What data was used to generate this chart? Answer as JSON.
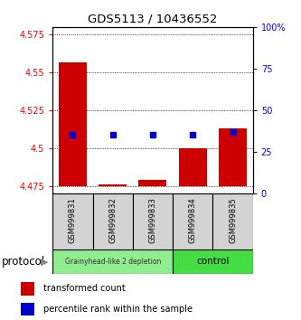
{
  "title": "GDS5113 / 10436552",
  "samples": [
    "GSM999831",
    "GSM999832",
    "GSM999833",
    "GSM999834",
    "GSM999835"
  ],
  "bar_bottoms": [
    4.475,
    4.475,
    4.475,
    4.475,
    4.475
  ],
  "bar_tops": [
    4.557,
    4.476,
    4.479,
    4.5,
    4.513
  ],
  "percentile_y": [
    4.509,
    4.509,
    4.509,
    4.509,
    4.511
  ],
  "ylim_left": [
    4.47,
    4.58
  ],
  "ylim_right": [
    0,
    100
  ],
  "yticks_left": [
    4.475,
    4.5,
    4.525,
    4.55,
    4.575
  ],
  "ytick_labels_left": [
    "4.475",
    "4.5",
    "4.525",
    "4.55",
    "4.575"
  ],
  "yticks_right": [
    0,
    25,
    50,
    75,
    100
  ],
  "ytick_labels_right": [
    "0",
    "25",
    "50",
    "75",
    "100%"
  ],
  "bar_color": "#CC0000",
  "dot_color": "#0000CC",
  "depletion_color": "#90EE90",
  "control_color": "#44DD44",
  "group_label": "protocol",
  "legend_items": [
    "transformed count",
    "percentile rank within the sample"
  ]
}
